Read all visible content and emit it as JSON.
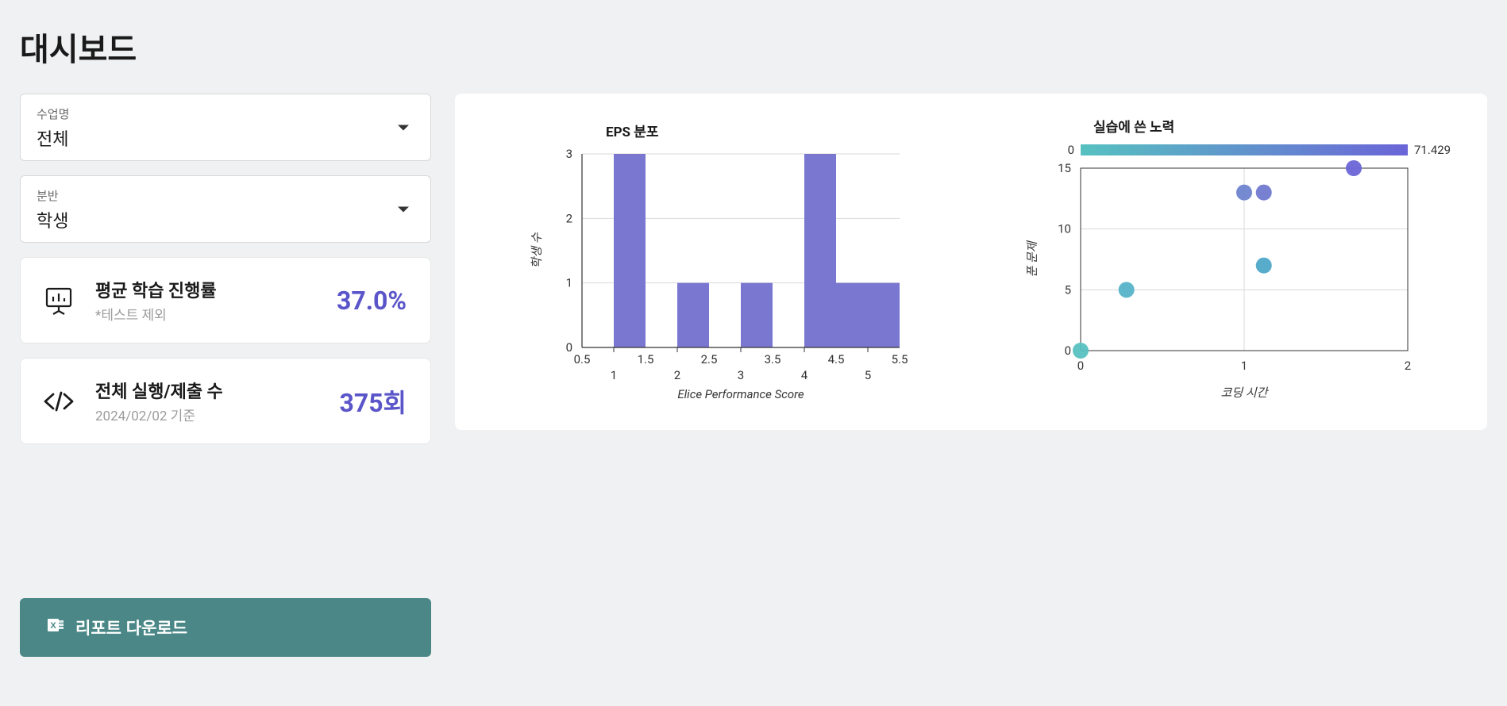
{
  "page": {
    "title": "대시보드"
  },
  "filters": {
    "course": {
      "label": "수업명",
      "value": "전체"
    },
    "section": {
      "label": "분반",
      "value": "학생"
    }
  },
  "stats": {
    "progress": {
      "title": "평균 학습 진행률",
      "subtitle": "*테스트 제외",
      "value": "37.0%",
      "value_color": "#5a55c9"
    },
    "runs": {
      "title": "전체 실행/제출 수",
      "subtitle": "2024/02/02 기준",
      "value": "375회",
      "value_color": "#5a55c9"
    }
  },
  "eps_chart": {
    "title": "EPS 분포",
    "type": "bar",
    "xlabel": "Elice Performance Score",
    "ylabel": "학생 수",
    "x_ticks_major": [
      1,
      2,
      3,
      4,
      5
    ],
    "x_ticks_minor": [
      0.5,
      1.5,
      2.5,
      3.5,
      4.5,
      5.5
    ],
    "y_ticks": [
      0,
      1,
      2,
      3
    ],
    "xlim": [
      0.5,
      5.5
    ],
    "ylim": [
      0,
      3
    ],
    "bar_color": "#7a77d1",
    "grid_color": "#d9d9d9",
    "axis_color": "#333333",
    "tick_fontsize": 15,
    "label_fontsize": 15,
    "title_fontsize": 17,
    "bars": [
      {
        "x0": 1.0,
        "x1": 1.5,
        "y": 3
      },
      {
        "x0": 2.0,
        "x1": 2.5,
        "y": 1
      },
      {
        "x0": 3.0,
        "x1": 3.5,
        "y": 1
      },
      {
        "x0": 4.0,
        "x1": 4.5,
        "y": 3
      },
      {
        "x0": 4.5,
        "x1": 5.0,
        "y": 1
      },
      {
        "x0": 5.0,
        "x1": 5.5,
        "y": 1
      }
    ]
  },
  "effort_chart": {
    "title": "실습에 쓴 노력",
    "type": "scatter",
    "xlabel": "코딩 시간",
    "ylabel": "푼 문제",
    "x_ticks": [
      0,
      1,
      2
    ],
    "y_ticks": [
      0,
      5,
      10,
      15
    ],
    "xlim": [
      0,
      2
    ],
    "ylim": [
      0,
      15
    ],
    "grid_color": "#d9d9d9",
    "axis_color": "#333333",
    "tick_fontsize": 15,
    "label_fontsize": 15,
    "title_fontsize": 17,
    "marker_radius": 10,
    "colorbar": {
      "min": 0,
      "max_label": "71.429",
      "gradient_start": "#56c1c0",
      "gradient_end": "#6b65d8"
    },
    "points": [
      {
        "x": 0.0,
        "y": 0,
        "color": "#56c1c0"
      },
      {
        "x": 0.28,
        "y": 5,
        "color": "#56b3c8"
      },
      {
        "x": 1.0,
        "y": 13,
        "color": "#6f84d0"
      },
      {
        "x": 1.12,
        "y": 13,
        "color": "#7079cf"
      },
      {
        "x": 1.12,
        "y": 7,
        "color": "#4fa8c8"
      },
      {
        "x": 1.67,
        "y": 15,
        "color": "#6b65d8"
      }
    ]
  },
  "download": {
    "label": "리포트 다운로드"
  }
}
